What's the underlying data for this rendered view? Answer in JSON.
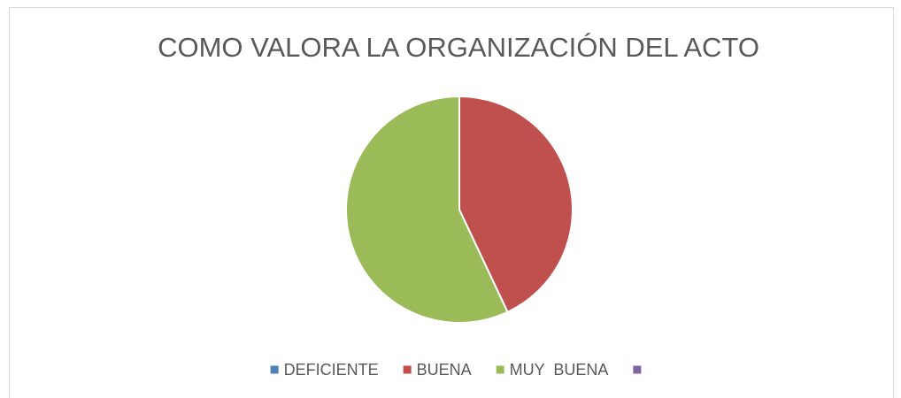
{
  "chart_data": {
    "type": "pie",
    "title": "COMO VALORA LA ORGANIZACIÓN DEL ACTO",
    "categories": [
      "DEFICIENTE",
      "BUENA",
      "MUY  BUENA",
      null
    ],
    "values": [
      0,
      43,
      57,
      0
    ],
    "colors": [
      "#4f81bd",
      "#c0504d",
      "#9bbb59",
      "#8064a2"
    ],
    "legend": "bottom"
  }
}
